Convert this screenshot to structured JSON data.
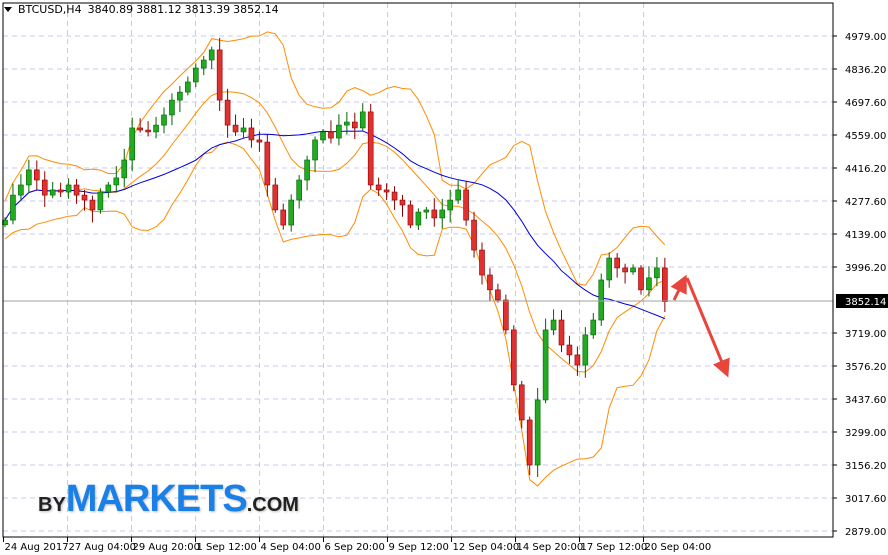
{
  "header": {
    "symbol": "BTCUSD,H4",
    "open": "3840.89",
    "high": "3881.12",
    "low": "3813.39",
    "close": "3852.14"
  },
  "logo": {
    "by": "BY",
    "markets": "MARKETS",
    "com": ".COM"
  },
  "colors": {
    "bull": "#22aa22",
    "bear": "#e03030",
    "bands": "#ff8c00",
    "ma": "#0000dd",
    "arrow": "#e8453c",
    "grid": "#c8c8ec"
  },
  "chart_data": {
    "type": "candlestick",
    "title": "BTCUSD,H4",
    "y_ticks": [
      "4979.00",
      "4836.20",
      "4697.60",
      "4559.00",
      "4416.20",
      "4277.60",
      "4139.00",
      "3996.20",
      "3719.00",
      "3576.20",
      "3437.60",
      "3299.00",
      "3156.20",
      "3017.60",
      "2879.00"
    ],
    "y_tick_values": [
      4979,
      4836.2,
      4697.6,
      4559,
      4416.2,
      4277.6,
      4139,
      3996.2,
      3719,
      3576.2,
      3437.6,
      3299,
      3156.2,
      3017.6,
      2879
    ],
    "ylim": [
      2879,
      4979
    ],
    "current_price": "3852.14",
    "x_ticks": [
      "24 Aug 2017",
      "27 Aug 04:00",
      "29 Aug 20:00",
      "1 Sep 12:00",
      "4 Sep 04:00",
      "6 Sep 20:00",
      "9 Sep 12:00",
      "12 Sep 04:00",
      "14 Sep 20:00",
      "17 Sep 12:00",
      "20 Sep 04:00"
    ],
    "closes": [
      4198,
      4304,
      4347,
      4411,
      4368,
      4304,
      4326,
      4317,
      4347,
      4304,
      4283,
      4241,
      4317,
      4347,
      4377,
      4453,
      4589,
      4580,
      4572,
      4601,
      4644,
      4707,
      4741,
      4784,
      4843,
      4877,
      4920,
      4707,
      4601,
      4572,
      4589,
      4538,
      4529,
      4347,
      4241,
      4177,
      4283,
      4368,
      4453,
      4538,
      4572,
      4546,
      4601,
      4614,
      4589,
      4657,
      4347,
      4326,
      4317,
      4283,
      4262,
      4177,
      4232,
      4241,
      4207,
      4241,
      4283,
      4326,
      4198,
      4071,
      3965,
      3902,
      3859,
      3732,
      3499,
      3350,
      3159,
      3435,
      3732,
      3774,
      3668,
      3626,
      3583,
      3711,
      3774,
      3944,
      4037,
      3995,
      3978,
      3995,
      3902,
      3953,
      3995,
      3852
    ],
    "indicators": [
      "Bollinger Bands",
      "Moving Average"
    ],
    "grid": true,
    "annotation": "red arrow up then down (forecast)"
  }
}
